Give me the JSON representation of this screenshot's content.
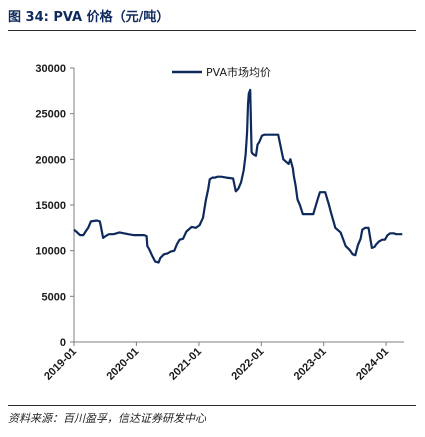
{
  "figure": {
    "title": "图 34:  PVA 价格（元/吨）",
    "source": "资料来源：百川盈孚，信达证券研发中心"
  },
  "chart_data": {
    "type": "line",
    "title": "",
    "xlabel": "",
    "ylabel": "",
    "ylim": [
      0,
      30000
    ],
    "yticks": [
      0,
      5000,
      10000,
      15000,
      20000,
      25000,
      30000
    ],
    "xtick_labels": [
      "2019-01",
      "2020-01",
      "2021-01",
      "2022-01",
      "2023-01",
      "2024-01"
    ],
    "xlim": [
      "2019-01-01",
      "2024-04-15"
    ],
    "grid": false,
    "legend_position": "top-center",
    "series": [
      {
        "name": "PVA市场均价",
        "color": "#0e2a5c",
        "x": [
          "2019-01-01",
          "2019-01-20",
          "2019-02-05",
          "2019-02-25",
          "2019-03-10",
          "2019-03-25",
          "2019-04-10",
          "2019-05-15",
          "2019-06-01",
          "2019-06-08",
          "2019-06-20",
          "2019-07-05",
          "2019-07-25",
          "2019-08-20",
          "2019-09-25",
          "2019-10-20",
          "2019-11-15",
          "2019-12-15",
          "2020-01-15",
          "2020-02-15",
          "2020-03-01",
          "2020-03-05",
          "2020-03-15",
          "2020-04-01",
          "2020-04-20",
          "2020-05-10",
          "2020-05-20",
          "2020-06-10",
          "2020-07-01",
          "2020-07-20",
          "2020-08-10",
          "2020-08-25",
          "2020-09-10",
          "2020-09-30",
          "2020-10-20",
          "2020-11-20",
          "2020-12-15",
          "2021-01-05",
          "2021-01-25",
          "2021-02-10",
          "2021-02-25",
          "2021-03-05",
          "2021-03-20",
          "2021-04-05",
          "2021-04-20",
          "2021-05-10",
          "2021-06-10",
          "2021-07-20",
          "2021-08-05",
          "2021-08-20",
          "2021-09-05",
          "2021-09-20",
          "2021-10-01",
          "2021-10-10",
          "2021-10-15",
          "2021-10-20",
          "2021-10-28",
          "2021-11-05",
          "2021-11-12",
          "2021-11-20",
          "2021-12-01",
          "2021-12-10",
          "2021-12-20",
          "2022-01-05",
          "2022-01-20",
          "2022-02-05",
          "2022-03-01",
          "2022-03-20",
          "2022-04-10",
          "2022-05-10",
          "2022-06-10",
          "2022-06-20",
          "2022-07-05",
          "2022-07-10",
          "2022-07-20",
          "2022-08-01",
          "2022-08-15",
          "2022-09-01",
          "2022-09-20",
          "2022-10-05",
          "2022-10-20",
          "2022-11-01",
          "2022-11-20",
          "2022-12-10",
          "2023-01-10",
          "2023-02-01",
          "2023-02-15",
          "2023-03-01",
          "2023-03-10",
          "2023-04-10",
          "2023-05-10",
          "2023-06-01",
          "2023-06-20",
          "2023-07-05",
          "2023-07-20",
          "2023-08-05",
          "2023-08-15",
          "2023-09-01",
          "2023-09-20",
          "2023-10-10",
          "2023-10-25",
          "2023-11-05",
          "2023-11-20",
          "2023-12-10",
          "2023-12-25",
          "2024-01-10",
          "2024-01-25",
          "2024-02-15",
          "2024-03-01",
          "2024-03-20",
          "2024-04-05"
        ],
        "values": [
          12300,
          12000,
          11700,
          11700,
          12100,
          12500,
          13200,
          13300,
          13200,
          12600,
          11400,
          11600,
          11800,
          11800,
          12000,
          11900,
          11800,
          11700,
          11700,
          11700,
          11600,
          10500,
          10200,
          9500,
          8800,
          8700,
          9200,
          9600,
          9700,
          9900,
          10000,
          10700,
          11200,
          11300,
          12100,
          12600,
          12500,
          12800,
          13600,
          15500,
          16800,
          17800,
          18000,
          18000,
          18100,
          18100,
          18000,
          17900,
          16500,
          16800,
          17500,
          18800,
          20500,
          23000,
          26000,
          27200,
          27600,
          20800,
          20600,
          20500,
          20400,
          21600,
          21900,
          22600,
          22700,
          22700,
          22700,
          22700,
          22700,
          20000,
          19500,
          20000,
          19000,
          18200,
          17200,
          15600,
          15000,
          14000,
          14000,
          14000,
          14000,
          14000,
          15200,
          16400,
          16400,
          15000,
          14000,
          13100,
          12500,
          12000,
          10500,
          10100,
          9600,
          9500,
          10600,
          11300,
          12300,
          12500,
          12500,
          10300,
          10400,
          10700,
          11000,
          11200,
          11200,
          11700,
          11900,
          11900,
          11800,
          11800,
          11800
        ]
      }
    ]
  }
}
